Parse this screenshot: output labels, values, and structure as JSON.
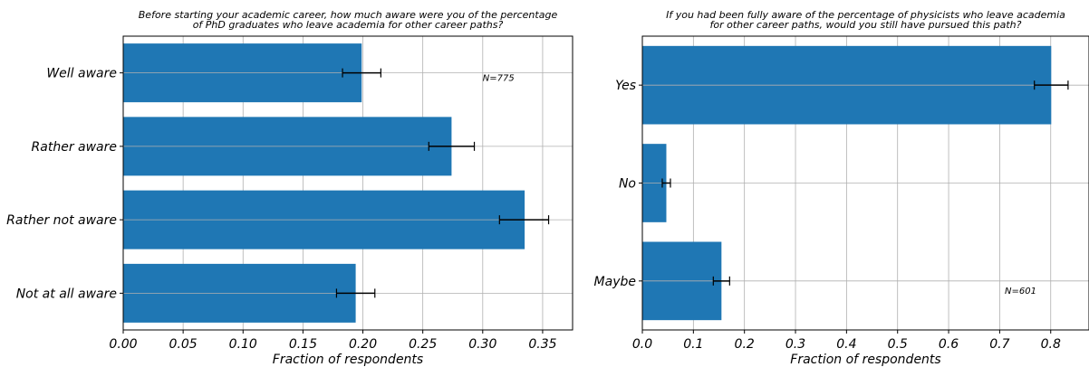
{
  "chart_data": [
    {
      "type": "bar",
      "orientation": "horizontal",
      "title": "Before starting your academic career, how much aware were you of the percentage\nof PhD graduates who leave academia for other career paths?",
      "xlabel": "Fraction of respondents",
      "categories": [
        "Well aware",
        "Rather aware",
        "Rather not aware",
        "Not at all aware"
      ],
      "values": [
        0.199,
        0.274,
        0.335,
        0.194
      ],
      "error_low": [
        0.183,
        0.255,
        0.314,
        0.178
      ],
      "error_high": [
        0.215,
        0.293,
        0.355,
        0.21
      ],
      "xlim": [
        0,
        0.375
      ],
      "xticks": [
        0.0,
        0.05,
        0.1,
        0.15,
        0.2,
        0.25,
        0.3,
        0.35
      ],
      "xtick_labels": [
        "0.00",
        "0.05",
        "0.10",
        "0.15",
        "0.20",
        "0.25",
        "0.30",
        "0.35"
      ],
      "annotation": "N=775",
      "annotation_x": 0.3,
      "grid": true,
      "bar_color": "#1f77b4"
    },
    {
      "type": "bar",
      "orientation": "horizontal",
      "title": "If you had been fully aware of the percentage of physicists who leave academia\nfor other career paths, would you still have pursued this path?",
      "xlabel": "Fraction of respondents",
      "categories": [
        "Yes",
        "No",
        "Maybe"
      ],
      "values": [
        0.801,
        0.047,
        0.155
      ],
      "error_low": [
        0.768,
        0.039,
        0.139
      ],
      "error_high": [
        0.834,
        0.055,
        0.171
      ],
      "xlim": [
        0,
        0.875
      ],
      "xticks": [
        0.0,
        0.1,
        0.2,
        0.3,
        0.4,
        0.5,
        0.6,
        0.7,
        0.8
      ],
      "xtick_labels": [
        "0.0",
        "0.1",
        "0.2",
        "0.3",
        "0.4",
        "0.5",
        "0.6",
        "0.7",
        "0.8"
      ],
      "annotation": "N=601",
      "annotation_x": 0.71,
      "grid": true,
      "bar_color": "#1f77b4"
    }
  ]
}
